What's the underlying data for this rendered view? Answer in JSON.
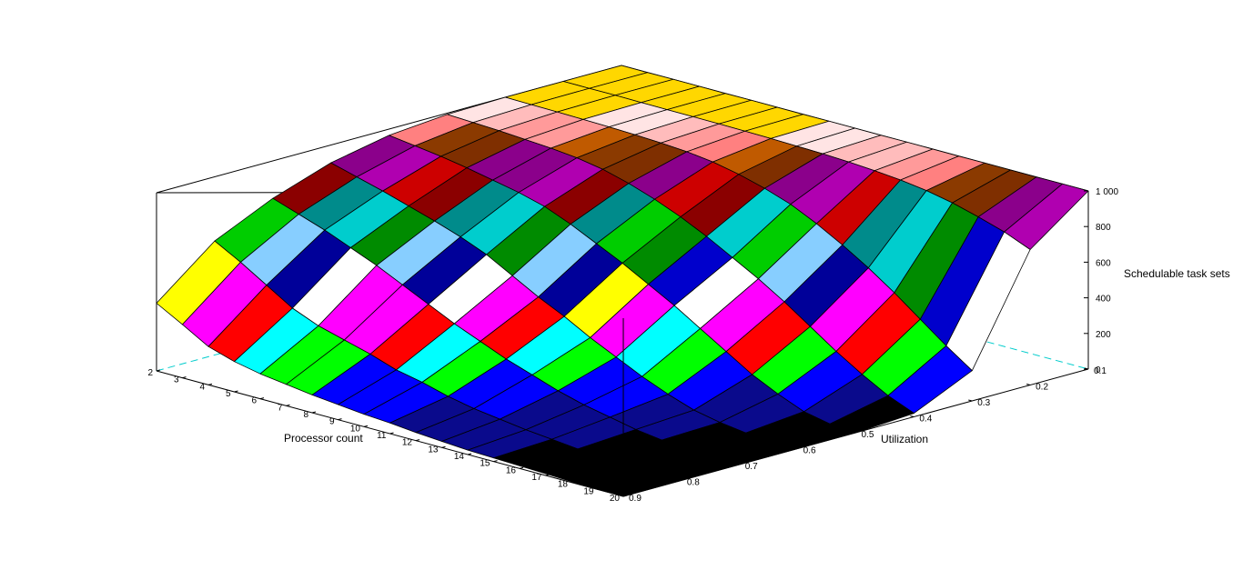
{
  "chart_data": {
    "type": "surface3d",
    "x": {
      "label": "Processor count",
      "ticks": [
        "2",
        "3",
        "4",
        "5",
        "6",
        "7",
        "8",
        "9",
        "10",
        "11",
        "12",
        "13",
        "14",
        "15",
        "16",
        "17",
        "18",
        "19",
        "20"
      ]
    },
    "y": {
      "label": "Utilization",
      "ticks": [
        "0.9",
        "0.8",
        "0.7",
        "0.6",
        "0.5",
        "0.4",
        "0.3",
        "0.2",
        "0.1"
      ]
    },
    "z": {
      "label": "Schedulable task sets",
      "ticks": [
        "0",
        "200",
        "400",
        "600",
        "800",
        "1 000"
      ],
      "range": [
        0,
        1000
      ]
    },
    "colorbands": [
      {
        "max": 30,
        "color": "#000000"
      },
      {
        "max": 100,
        "color": "#0a0a8c"
      },
      {
        "max": 180,
        "color": "#0000ff"
      },
      {
        "max": 240,
        "color": "#00ff00"
      },
      {
        "max": 300,
        "color": "#00ffff"
      },
      {
        "max": 360,
        "color": "#ff0000"
      },
      {
        "max": 420,
        "color": "#ff00ff"
      },
      {
        "max": 470,
        "color": "#ffff00"
      },
      {
        "max": 510,
        "color": "#ffffff"
      },
      {
        "max": 560,
        "color": "#000099"
      },
      {
        "max": 600,
        "color": "#0000cc"
      },
      {
        "max": 640,
        "color": "#87ceff"
      },
      {
        "max": 680,
        "color": "#008b00"
      },
      {
        "max": 720,
        "color": "#00cd00"
      },
      {
        "max": 760,
        "color": "#00cdcd"
      },
      {
        "max": 800,
        "color": "#008b8b"
      },
      {
        "max": 840,
        "color": "#8b0000"
      },
      {
        "max": 870,
        "color": "#cd0000"
      },
      {
        "max": 900,
        "color": "#b000b0"
      },
      {
        "max": 925,
        "color": "#8b008b"
      },
      {
        "max": 945,
        "color": "#7f2f00"
      },
      {
        "max": 960,
        "color": "#8b3a00"
      },
      {
        "max": 970,
        "color": "#c05a00"
      },
      {
        "max": 978,
        "color": "#ff8080"
      },
      {
        "max": 985,
        "color": "#ff9a9a"
      },
      {
        "max": 991,
        "color": "#ffbcbc"
      },
      {
        "max": 996,
        "color": "#ffe4e4"
      },
      {
        "max": 1000,
        "color": "#ffd700"
      }
    ],
    "values": [
      [
        380,
        300,
        215,
        170,
        140,
        120,
        100,
        85,
        70,
        60,
        45,
        35,
        25,
        20,
        15,
        10,
        5,
        0,
        0
      ],
      [
        640,
        560,
        470,
        380,
        320,
        280,
        240,
        190,
        160,
        120,
        90,
        70,
        50,
        35,
        20,
        10,
        5,
        0,
        0
      ],
      [
        790,
        740,
        690,
        630,
        570,
        500,
        430,
        360,
        300,
        240,
        190,
        140,
        100,
        70,
        40,
        20,
        10,
        0,
        0
      ],
      [
        900,
        860,
        820,
        775,
        730,
        680,
        620,
        540,
        460,
        390,
        310,
        240,
        170,
        110,
        60,
        30,
        10,
        0,
        0
      ],
      [
        965,
        945,
        925,
        900,
        870,
        840,
        800,
        740,
        670,
        600,
        520,
        440,
        350,
        260,
        170,
        100,
        40,
        10,
        0
      ],
      [
        993,
        987,
        980,
        970,
        960,
        945,
        920,
        880,
        830,
        770,
        700,
        620,
        540,
        450,
        350,
        250,
        160,
        80,
        20
      ],
      [
        1000,
        998,
        996,
        993,
        990,
        985,
        978,
        968,
        950,
        920,
        880,
        830,
        760,
        680,
        590,
        490,
        380,
        270,
        170
      ],
      [
        1000,
        1000,
        1000,
        999,
        998,
        997,
        996,
        994,
        992,
        989,
        985,
        978,
        968,
        955,
        935,
        905,
        865,
        820,
        760
      ],
      [
        1000,
        1000,
        1000,
        1000,
        1000,
        1000,
        1000,
        1000,
        1000,
        1000,
        1000,
        1000,
        1000,
        1000,
        1000,
        1000,
        1000,
        1000,
        1000
      ]
    ]
  }
}
